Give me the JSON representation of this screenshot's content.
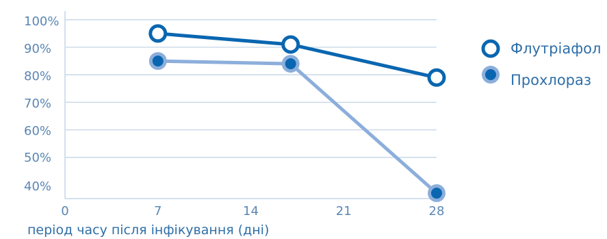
{
  "chart_data": {
    "type": "line",
    "xlabel": "період часу після інфікування (дні)",
    "ylabel": "",
    "title": "",
    "x_ticks": [
      0,
      7,
      14,
      21,
      28
    ],
    "y_ticks": [
      "40%",
      "50%",
      "60%",
      "70%",
      "80%",
      "90%",
      "100%"
    ],
    "xlim": [
      0,
      28
    ],
    "ylim": [
      35,
      100
    ],
    "grid": "horizontal",
    "legend_position": "right",
    "series": [
      {
        "name": "Флутріафол",
        "marker": "hollow-circle",
        "color": "#0a66b0",
        "x": [
          7,
          17,
          28
        ],
        "y": [
          95,
          91,
          79
        ]
      },
      {
        "name": "Прохлораз",
        "marker": "filled-circle",
        "color": "#8caedb",
        "marker_color": "#0a66b0",
        "x": [
          7,
          17,
          28
        ],
        "y": [
          85,
          84,
          37
        ]
      }
    ]
  }
}
